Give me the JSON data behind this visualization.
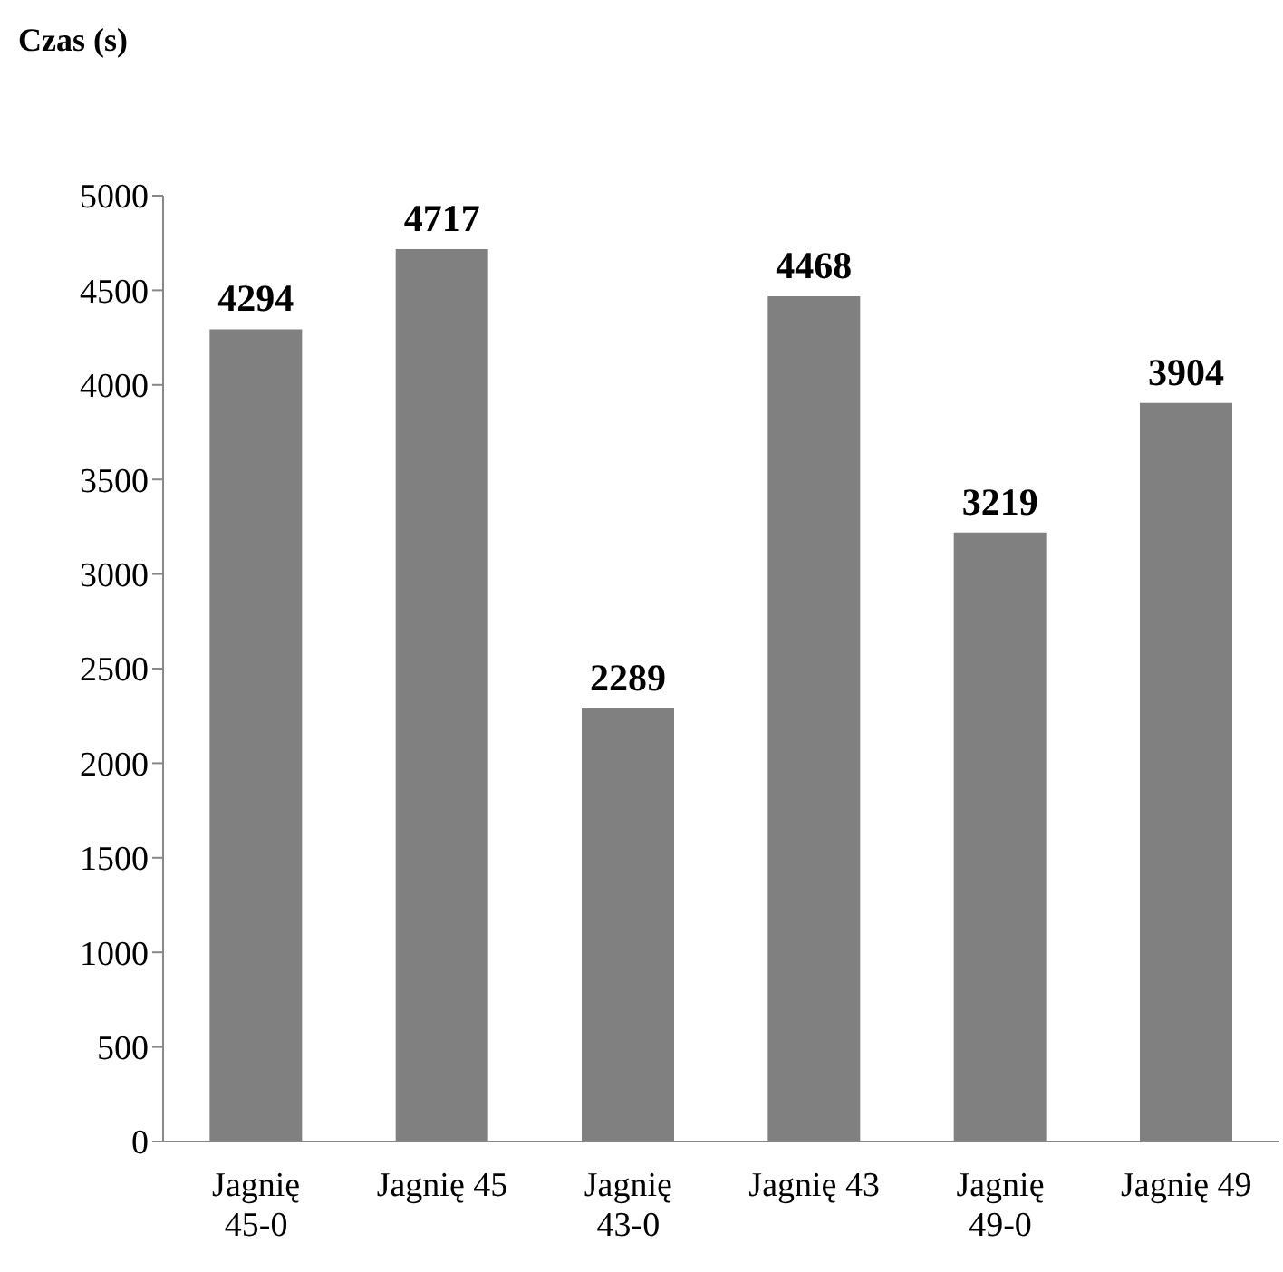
{
  "chart_data": {
    "type": "bar",
    "title": "Czas (s)",
    "categories": [
      "Jagnię 45-0",
      "Jagnię 45",
      "Jagnię 43-0",
      "Jagnię 43",
      "Jagnię 49-0",
      "Jagnię 49"
    ],
    "values": [
      4294,
      4717,
      2289,
      4468,
      3219,
      3904
    ],
    "color": "#808080",
    "ylim": [
      0,
      5000
    ],
    "yticks": [
      0,
      500,
      1000,
      1500,
      2000,
      2500,
      3000,
      3500,
      4000,
      4500,
      5000
    ],
    "data_labels": true,
    "grid": false,
    "legend": false
  }
}
